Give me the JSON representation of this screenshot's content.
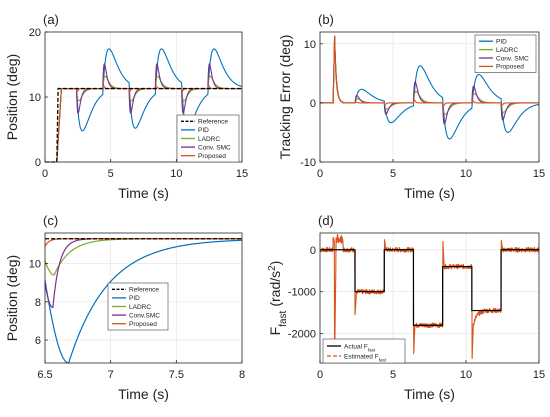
{
  "figure": {
    "background": "#ffffff"
  },
  "colors": {
    "reference": "#000000",
    "pid": "#0072BD",
    "ladrc": "#77AC30",
    "conv_smc": "#7E2F8E",
    "proposed": "#D95319",
    "actual": "#000000",
    "estimated": "#D95319"
  },
  "chart_data": [
    {
      "id": "a",
      "type": "line",
      "panel_label": "(a)",
      "xlabel": "Time (s)",
      "ylabel": "Position (deg)",
      "xlim": [
        0,
        15
      ],
      "ylim": [
        0,
        20
      ],
      "xticks": [
        0,
        5,
        10,
        15
      ],
      "yticks": [
        0,
        10,
        20
      ],
      "grid": true,
      "legend": {
        "placement": "bottom-right",
        "entries": [
          "Reference",
          "PID",
          "LADRC",
          "Conv. SMC",
          "Proposed"
        ]
      },
      "setpoint": 11.3,
      "steps": [
        {
          "t": 2.4,
          "dir": -1
        },
        {
          "t": 4.4,
          "dir": 1
        },
        {
          "t": 6.4,
          "dir": -1
        },
        {
          "t": 8.4,
          "dir": 1
        },
        {
          "t": 10.4,
          "dir": -1
        },
        {
          "t": 12.4,
          "dir": 1
        }
      ],
      "series": [
        {
          "name": "Reference",
          "key": "reference",
          "dashed": true
        },
        {
          "name": "PID",
          "key": "pid",
          "step_amp": 6.5,
          "tau": 0.45
        },
        {
          "name": "LADRC",
          "key": "ladrc",
          "step_amp": 1.9,
          "tau": 0.18
        },
        {
          "name": "Conv. SMC",
          "key": "conv_smc",
          "step_amp": 3.8,
          "tau": 0.12
        },
        {
          "name": "Proposed",
          "key": "proposed",
          "step_amp": 0.45,
          "tau": 0.05
        }
      ]
    },
    {
      "id": "b",
      "type": "line",
      "panel_label": "(b)",
      "xlabel": "Time (s)",
      "ylabel": "Tracking Error (deg)",
      "xlim": [
        0,
        15
      ],
      "ylim": [
        -10,
        12
      ],
      "xticks": [
        0,
        5,
        10,
        15
      ],
      "yticks": [
        -10,
        0,
        10
      ],
      "grid": true,
      "legend": {
        "placement": "top-right",
        "entries": [
          "PID",
          "LADRC",
          "Conv. SMC",
          "Proposed"
        ]
      },
      "initial_error_peak": 11.3,
      "steps": [
        {
          "t": 2.4,
          "dir": 1
        },
        {
          "t": 4.4,
          "dir": -1
        },
        {
          "t": 6.4,
          "dir": 1
        },
        {
          "t": 8.4,
          "dir": -1
        },
        {
          "t": 10.4,
          "dir": 1
        },
        {
          "t": 12.4,
          "dir": -1
        }
      ],
      "step_peaks": [
        2.3,
        -3.5,
        6.5,
        -6.5,
        5.2,
        -5.3
      ],
      "series": [
        {
          "name": "PID",
          "key": "pid",
          "scale": 1.0,
          "tau": 0.45
        },
        {
          "name": "LADRC",
          "key": "ladrc",
          "scale": 0.3,
          "tau": 0.18
        },
        {
          "name": "Conv. SMC",
          "key": "conv_smc",
          "scale": 0.55,
          "tau": 0.12
        },
        {
          "name": "Proposed",
          "key": "proposed",
          "scale": 0.08,
          "tau": 0.05
        }
      ]
    },
    {
      "id": "c",
      "type": "line",
      "panel_label": "(c)",
      "xlabel": "Time (s)",
      "ylabel": "Position (deg)",
      "xlim": [
        6.5,
        8
      ],
      "ylim": [
        4.8,
        11.6
      ],
      "xticks": [
        6.5,
        7,
        7.5,
        8
      ],
      "yticks": [
        6,
        8,
        10
      ],
      "grid": true,
      "legend": {
        "placement": "center-left",
        "entries": [
          "Reference",
          "PID",
          "LADRC",
          "Conv. SMC",
          "Proposed"
        ]
      },
      "setpoint": 11.3,
      "step_time": 6.45,
      "series": [
        {
          "name": "Reference",
          "key": "reference",
          "dashed": true
        },
        {
          "name": "PID",
          "key": "pid",
          "min": 4.8,
          "t_min": 6.68,
          "tau": 0.3
        },
        {
          "name": "LADRC",
          "key": "ladrc",
          "min": 9.4,
          "t_min": 6.57,
          "tau": 0.12
        },
        {
          "name": "Conv. SMC",
          "key": "conv_smc",
          "min": 7.7,
          "t_min": 6.56,
          "tau": 0.05
        },
        {
          "name": "Proposed",
          "key": "proposed",
          "min": 10.9,
          "t_min": 6.5,
          "tau": 0.03
        }
      ]
    },
    {
      "id": "d",
      "type": "line",
      "panel_label": "(d)",
      "xlabel": "Time (s)",
      "ylabel": "F_fast (rad/s^2)",
      "ylabel_main": "F",
      "ylabel_sub": "fast",
      "ylabel_unit_pre": "(rad/s",
      "ylabel_unit_sup": "2",
      "ylabel_unit_post": ")",
      "xlim": [
        0,
        15
      ],
      "ylim": [
        -2700,
        400
      ],
      "xticks": [
        0,
        5,
        10,
        15
      ],
      "yticks": [
        -2000,
        -1000,
        0
      ],
      "grid": true,
      "legend": {
        "placement": "bottom-left",
        "entries": [
          "Actual F_fast",
          "Estimated F_fast"
        ]
      },
      "legend_main": [
        "Actual F",
        "Estimated F"
      ],
      "legend_sub": [
        "fast",
        "fast"
      ],
      "actual": {
        "t": [
          0,
          2.4,
          2.4,
          4.4,
          4.4,
          6.4,
          6.4,
          8.4,
          8.4,
          10.4,
          10.4,
          12.4,
          12.4,
          15
        ],
        "v": [
          0,
          0,
          -1000,
          -1000,
          0,
          0,
          -1800,
          -1800,
          -400,
          -400,
          -1450,
          -1450,
          0,
          0
        ]
      },
      "estimated_spikes": [
        {
          "t": 1.0,
          "v": -2700
        },
        {
          "t": 2.4,
          "v": -1550
        },
        {
          "t": 4.4,
          "v": 300
        },
        {
          "t": 6.4,
          "v": -2650
        },
        {
          "t": 8.4,
          "v": 350
        },
        {
          "t": 10.4,
          "v": -2300
        },
        {
          "t": 12.4,
          "v": 280
        }
      ]
    }
  ]
}
